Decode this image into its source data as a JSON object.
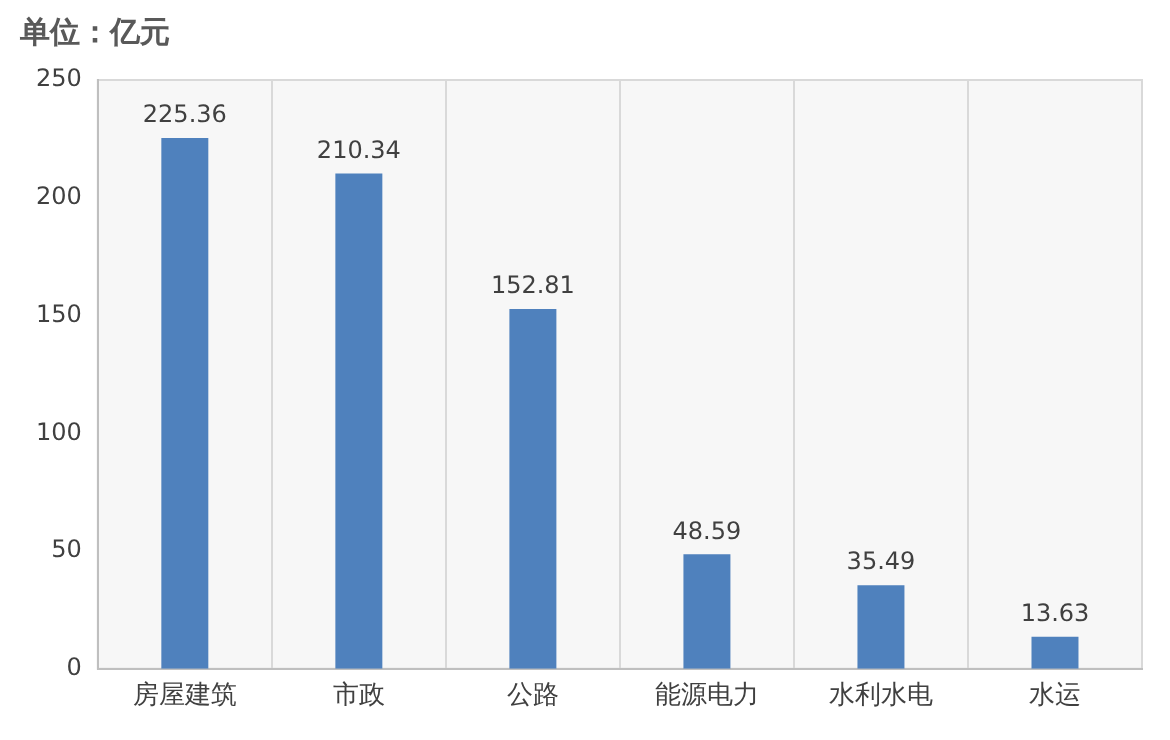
{
  "chart_data": {
    "type": "bar",
    "title": "单位：亿元",
    "categories": [
      "房屋建筑",
      "市政",
      "公路",
      "能源电力",
      "水利水电",
      "水运"
    ],
    "values": [
      225.36,
      210.34,
      152.81,
      48.59,
      35.49,
      13.63
    ],
    "color": "#4f81bd",
    "ylim": [
      0,
      250
    ],
    "yticks": [
      0,
      50,
      100,
      150,
      200,
      250
    ],
    "grid": "x",
    "data_labels": true
  }
}
